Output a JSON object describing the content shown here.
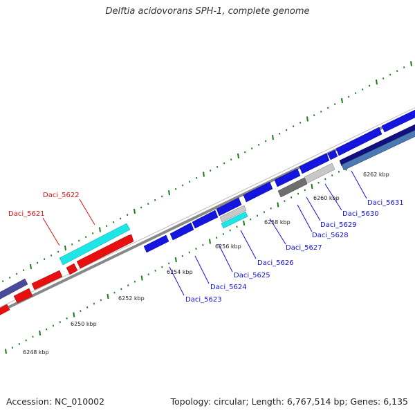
{
  "header": {
    "title": "Delftia acidovorans SPH-1, complete genome"
  },
  "footer": {
    "accession": "Accession: NC_010002",
    "summary": "Topology: circular; Length: 6,767,514 bp; Genes: 6,135"
  },
  "colors": {
    "backbone": "#888888",
    "tick": "#1a7a1a",
    "gene_red": "#e61010",
    "gene_cyan": "#1fe6e6",
    "gene_blue": "#1515e0",
    "gene_navy": "#101080",
    "gene_slate": "#4a4a9a",
    "gene_steel": "#4a7ab5",
    "gene_gray": "#6e6e6e",
    "gene_lightgray": "#c8c8c8",
    "label_red": "#e01010",
    "label_blue": "#1010e0"
  },
  "scale_labels": [
    "6248 kbp",
    "6250 kbp",
    "6252 kbp",
    "6254 kbp",
    "6256 kbp",
    "6258 kbp",
    "6260 kbp",
    "6262 kbp"
  ],
  "gene_labels": [
    {
      "text": "Daci_5621",
      "strand": "reverse"
    },
    {
      "text": "Daci_5622",
      "strand": "reverse"
    },
    {
      "text": "Daci_5623",
      "strand": "forward"
    },
    {
      "text": "Daci_5624",
      "strand": "forward"
    },
    {
      "text": "Daci_5625",
      "strand": "forward"
    },
    {
      "text": "Daci_5626",
      "strand": "forward"
    },
    {
      "text": "Daci_5627",
      "strand": "forward"
    },
    {
      "text": "Daci_5628",
      "strand": "forward"
    },
    {
      "text": "Daci_5629",
      "strand": "forward"
    },
    {
      "text": "Daci_5630",
      "strand": "forward"
    },
    {
      "text": "Daci_5631",
      "strand": "forward"
    }
  ]
}
